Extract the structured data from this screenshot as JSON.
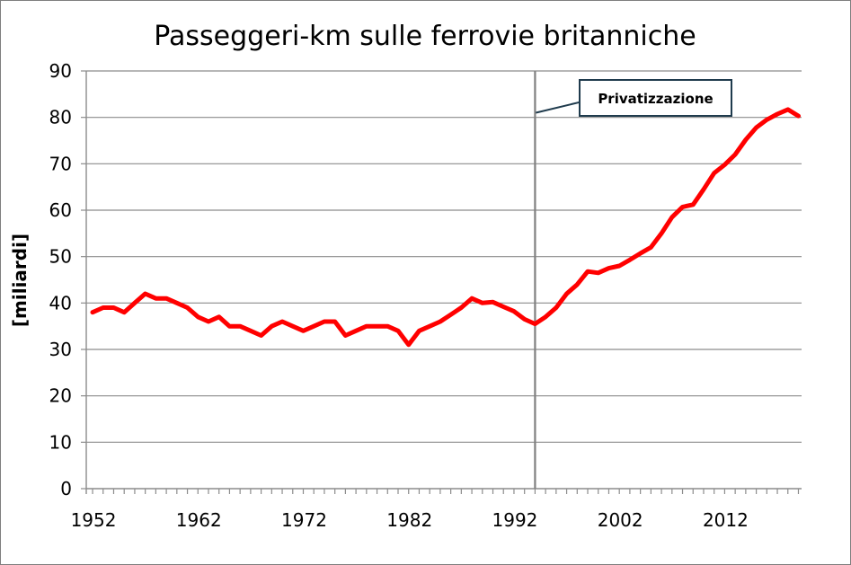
{
  "chart_data": {
    "type": "line",
    "title": "Passeggeri-km sulle ferrovie britanniche",
    "xlabel": "",
    "ylabel": "[miliardi]",
    "xlim": [
      1952,
      2019
    ],
    "ylim": [
      0,
      90
    ],
    "yticks": [
      0,
      10,
      20,
      30,
      40,
      50,
      60,
      70,
      80,
      90
    ],
    "xtick_labels": [
      "1952",
      "1962",
      "1972",
      "1982",
      "1992",
      "2002",
      "2012"
    ],
    "xtick_values": [
      1952,
      1962,
      1972,
      1982,
      1992,
      2002,
      2012
    ],
    "grid": true,
    "series": [
      {
        "color": "#ff0000",
        "x": [
          1952,
          1953,
          1954,
          1955,
          1956,
          1957,
          1958,
          1959,
          1960,
          1961,
          1962,
          1963,
          1964,
          1965,
          1966,
          1967,
          1968,
          1969,
          1970,
          1971,
          1972,
          1973,
          1974,
          1975,
          1976,
          1977,
          1978,
          1979,
          1980,
          1981,
          1982,
          1983,
          1984,
          1985,
          1986,
          1987,
          1988,
          1989,
          1990,
          1991,
          1992,
          1993,
          1994,
          1995,
          1996,
          1997,
          1998,
          1999,
          2000,
          2001,
          2002,
          2003,
          2004,
          2005,
          2006,
          2007,
          2008,
          2009,
          2010,
          2011,
          2012,
          2013,
          2014,
          2015,
          2016,
          2017,
          2018,
          2019
        ],
        "values": [
          38,
          39,
          39,
          38,
          40,
          42,
          41,
          41,
          40,
          39,
          37,
          36,
          37,
          35,
          35,
          34,
          33,
          35,
          36,
          35,
          34,
          35,
          36,
          36,
          33,
          34,
          35,
          35,
          35,
          34,
          31,
          34,
          35,
          36,
          37.5,
          39,
          41,
          40,
          40.2,
          39.2,
          38.2,
          36.5,
          35.5,
          37,
          39,
          42,
          44,
          46.8,
          46.5,
          47.5,
          48,
          49.3,
          50.7,
          52,
          55,
          58.5,
          60.7,
          61.2,
          64.5,
          68,
          69.8,
          72,
          75.2,
          77.8,
          79.5,
          80.7,
          81.7,
          80.3
        ]
      }
    ],
    "annotations": [
      {
        "text": "Privatizzazione",
        "x": 1994
      }
    ]
  }
}
